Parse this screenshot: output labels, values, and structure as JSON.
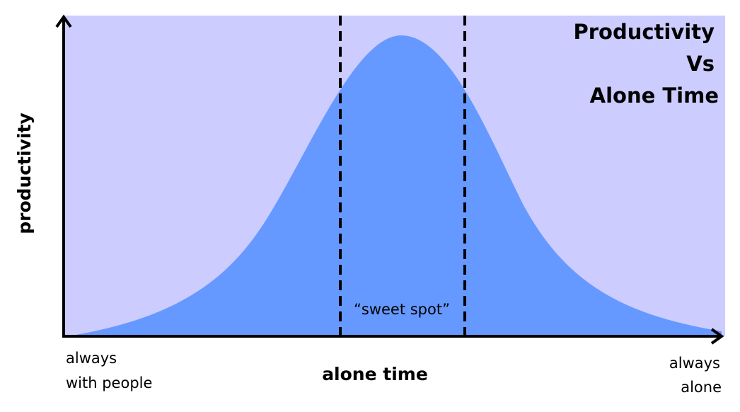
{
  "title": [
    "Productivity",
    "Vs",
    "Alone Time"
  ],
  "y_axis_label": "productivity",
  "x_axis_label": "alone time",
  "x_start_label": [
    "always",
    "with people"
  ],
  "x_end_label": [
    "always",
    "alone"
  ],
  "annotation": "“sweet spot”"
}
